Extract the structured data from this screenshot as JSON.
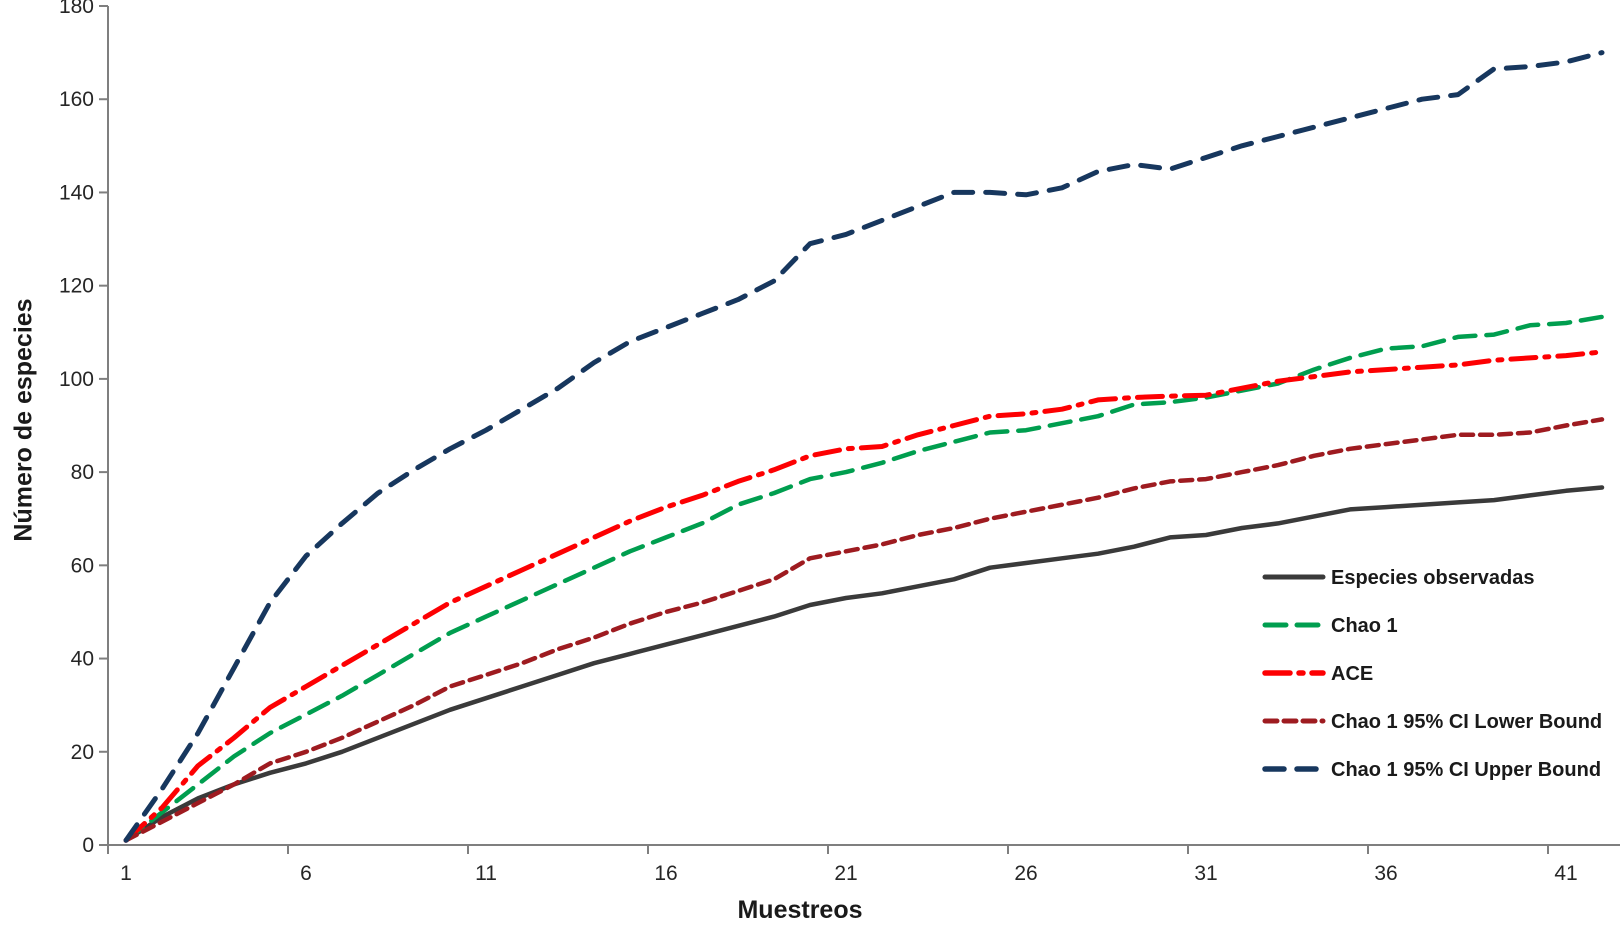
{
  "chart_data": {
    "type": "line",
    "title": "",
    "xlabel": "Muestreos",
    "ylabel": "Número de especies",
    "x_range": [
      1,
      42
    ],
    "x_ticks": [
      1,
      6,
      11,
      16,
      21,
      26,
      31,
      36,
      41
    ],
    "ylim": [
      0,
      180
    ],
    "y_ticks": [
      0,
      20,
      40,
      60,
      80,
      100,
      120,
      140,
      160,
      180
    ],
    "grid": false,
    "legend_position": "inside-right",
    "axis_color": "#7f7f7f",
    "tick_label_color": "#262626",
    "legend_text_color": "#1a1a1a",
    "series": [
      {
        "name": "Especies observadas",
        "color": "#3a3a3a",
        "dash": "solid",
        "width": 4.5,
        "values": [
          1,
          6,
          10,
          13,
          15.5,
          17.5,
          20,
          23,
          26,
          29,
          31.5,
          34,
          36.5,
          39,
          41,
          43,
          45,
          47,
          49,
          51.5,
          53,
          54,
          55.5,
          57,
          59.5,
          60.5,
          61.5,
          62.5,
          64,
          66,
          66.5,
          68,
          69,
          70.5,
          72,
          72.5,
          73,
          73.5,
          74,
          75,
          76,
          76.7
        ]
      },
      {
        "name": "Chao 1",
        "color": "#009e4f",
        "dash": "long-dash",
        "width": 4.5,
        "values": [
          1,
          7,
          13,
          19,
          24,
          28,
          32,
          36.5,
          41,
          45.5,
          49,
          52.5,
          56,
          59.5,
          63,
          66,
          69,
          73,
          75.5,
          78.5,
          80,
          82,
          84.5,
          86.5,
          88.5,
          89,
          90.5,
          92,
          94.5,
          95,
          96,
          97.5,
          99,
          102,
          104.5,
          106.5,
          107,
          109,
          109.5,
          111.5,
          112,
          113.3
        ]
      },
      {
        "name": "ACE",
        "color": "#fd0002",
        "dash": "dash-dot",
        "width": 5,
        "values": [
          1,
          8,
          17,
          23,
          29.5,
          34,
          38.5,
          43,
          47.5,
          52,
          55.5,
          59,
          62.5,
          66,
          69.5,
          72.5,
          75,
          78,
          80.5,
          83.5,
          85,
          85.5,
          88,
          90,
          92,
          92.5,
          93.5,
          95.5,
          96,
          96.3,
          96.5,
          98,
          99.5,
          100.5,
          101.5,
          102,
          102.5,
          103,
          104,
          104.5,
          105,
          105.8
        ]
      },
      {
        "name": "Chao 1 95% CI Lower Bound",
        "color": "#9e1b20",
        "dash": "short-dash",
        "width": 4.5,
        "values": [
          1,
          5,
          9,
          13,
          17.5,
          20,
          23,
          26.5,
          30,
          34,
          36.5,
          39,
          42,
          44.5,
          47.5,
          50,
          52,
          54.5,
          57,
          61.5,
          63,
          64.5,
          66.5,
          68,
          70,
          71.5,
          73,
          74.5,
          76.5,
          78,
          78.5,
          80,
          81.5,
          83.5,
          85,
          86,
          87,
          88,
          88,
          88.5,
          90,
          91.3
        ]
      },
      {
        "name": "Chao 1 95% CI Upper Bound",
        "color": "#17375e",
        "dash": "dash",
        "width": 5,
        "values": [
          1,
          12,
          24,
          38,
          52,
          62,
          69,
          75.5,
          80.5,
          85,
          89,
          93.5,
          98,
          103.5,
          108,
          111,
          114,
          117,
          121,
          129,
          131,
          134,
          137,
          140,
          140,
          139.5,
          141,
          144.5,
          146,
          145,
          147.5,
          150,
          152,
          154,
          156,
          158,
          160,
          161,
          166.5,
          167,
          168,
          170
        ]
      }
    ]
  }
}
